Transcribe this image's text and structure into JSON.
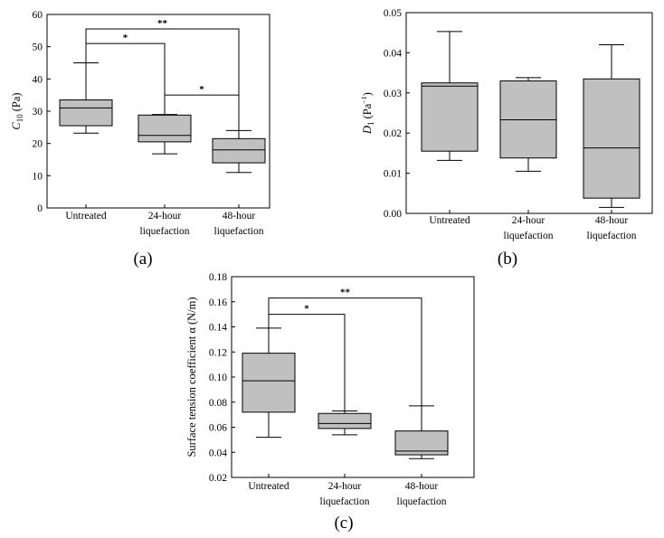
{
  "chart_data": [
    {
      "panel": "(a)",
      "type": "box",
      "ylabel_main": "C",
      "ylabel_sub": "10",
      "ylabel_unit": "(Pa)",
      "ylim": [
        0,
        60
      ],
      "yticks": [
        0,
        10,
        20,
        30,
        40,
        50,
        60
      ],
      "ytick_labels": [
        "0",
        "10",
        "20",
        "30",
        "40",
        "50",
        "60"
      ],
      "categories": [
        [
          "Untreated"
        ],
        [
          "24-hour",
          "liquefaction"
        ],
        [
          "48-hour",
          "liquefaction"
        ]
      ],
      "boxes": [
        {
          "min": 23.2,
          "q1": 25.5,
          "median": 31.0,
          "q3": 33.5,
          "max": 45.0
        },
        {
          "min": 16.8,
          "q1": 20.5,
          "median": 22.5,
          "q3": 28.8,
          "max": 29.0
        },
        {
          "min": 11.0,
          "q1": 14.0,
          "median": 18.0,
          "q3": 21.5,
          "max": 24.0
        }
      ],
      "significance": [
        {
          "from": 0,
          "to": 1,
          "label": "*",
          "y": 51,
          "leg_from": 45,
          "leg_to": 29
        },
        {
          "from": 1,
          "to": 2,
          "label": "*",
          "y": 35,
          "leg_from": 29,
          "leg_to": 24
        },
        {
          "from": 0,
          "to": 2,
          "label": "**",
          "y": 55.5,
          "leg_from": 45,
          "leg_to": 24
        }
      ]
    },
    {
      "panel": "(b)",
      "type": "box",
      "ylabel_main": "D",
      "ylabel_sub": "1",
      "ylabel_unit": "(Pa",
      "ylabel_sup": "−1",
      "ylabel_close": ")",
      "ylim": [
        0,
        0.05
      ],
      "yticks": [
        0,
        0.01,
        0.02,
        0.03,
        0.04,
        0.05
      ],
      "ytick_labels": [
        "0.00",
        "0.01",
        "0.02",
        "0.03",
        "0.04",
        "0.05"
      ],
      "categories": [
        [
          "Untreated"
        ],
        [
          "24-hour",
          "liquefaction"
        ],
        [
          "48-hour",
          "liquefaction"
        ]
      ],
      "boxes": [
        {
          "min": 0.0132,
          "q1": 0.0155,
          "median": 0.0317,
          "q3": 0.0325,
          "max": 0.0453
        },
        {
          "min": 0.0105,
          "q1": 0.0138,
          "median": 0.0233,
          "q3": 0.033,
          "max": 0.0338
        },
        {
          "min": 0.0015,
          "q1": 0.0038,
          "median": 0.0163,
          "q3": 0.0335,
          "max": 0.042
        }
      ],
      "significance": []
    },
    {
      "panel": "(c)",
      "type": "box",
      "ylabel_main": "Surface tension coefficient α (N/m)",
      "ylim": [
        0.02,
        0.18
      ],
      "yticks": [
        0.02,
        0.04,
        0.06,
        0.08,
        0.1,
        0.12,
        0.14,
        0.16,
        0.18
      ],
      "ytick_labels": [
        "0.02",
        "0.04",
        "0.06",
        "0.08",
        "0.10",
        "0.12",
        "0.14",
        "0.16",
        "0.18"
      ],
      "categories": [
        [
          "Untreated"
        ],
        [
          "24-hour",
          "liquefaction"
        ],
        [
          "48-hour",
          "liquefaction"
        ]
      ],
      "boxes": [
        {
          "min": 0.052,
          "q1": 0.072,
          "median": 0.097,
          "q3": 0.119,
          "max": 0.139
        },
        {
          "min": 0.054,
          "q1": 0.059,
          "median": 0.063,
          "q3": 0.071,
          "max": 0.073
        },
        {
          "min": 0.035,
          "q1": 0.038,
          "median": 0.041,
          "q3": 0.057,
          "max": 0.077
        }
      ],
      "significance": [
        {
          "from": 0,
          "to": 1,
          "label": "*",
          "y": 0.15,
          "leg_from": 0.139,
          "leg_to": 0.073
        },
        {
          "from": 0,
          "to": 2,
          "label": "**",
          "y": 0.163,
          "leg_from": 0.139,
          "leg_to": 0.077
        }
      ]
    }
  ]
}
